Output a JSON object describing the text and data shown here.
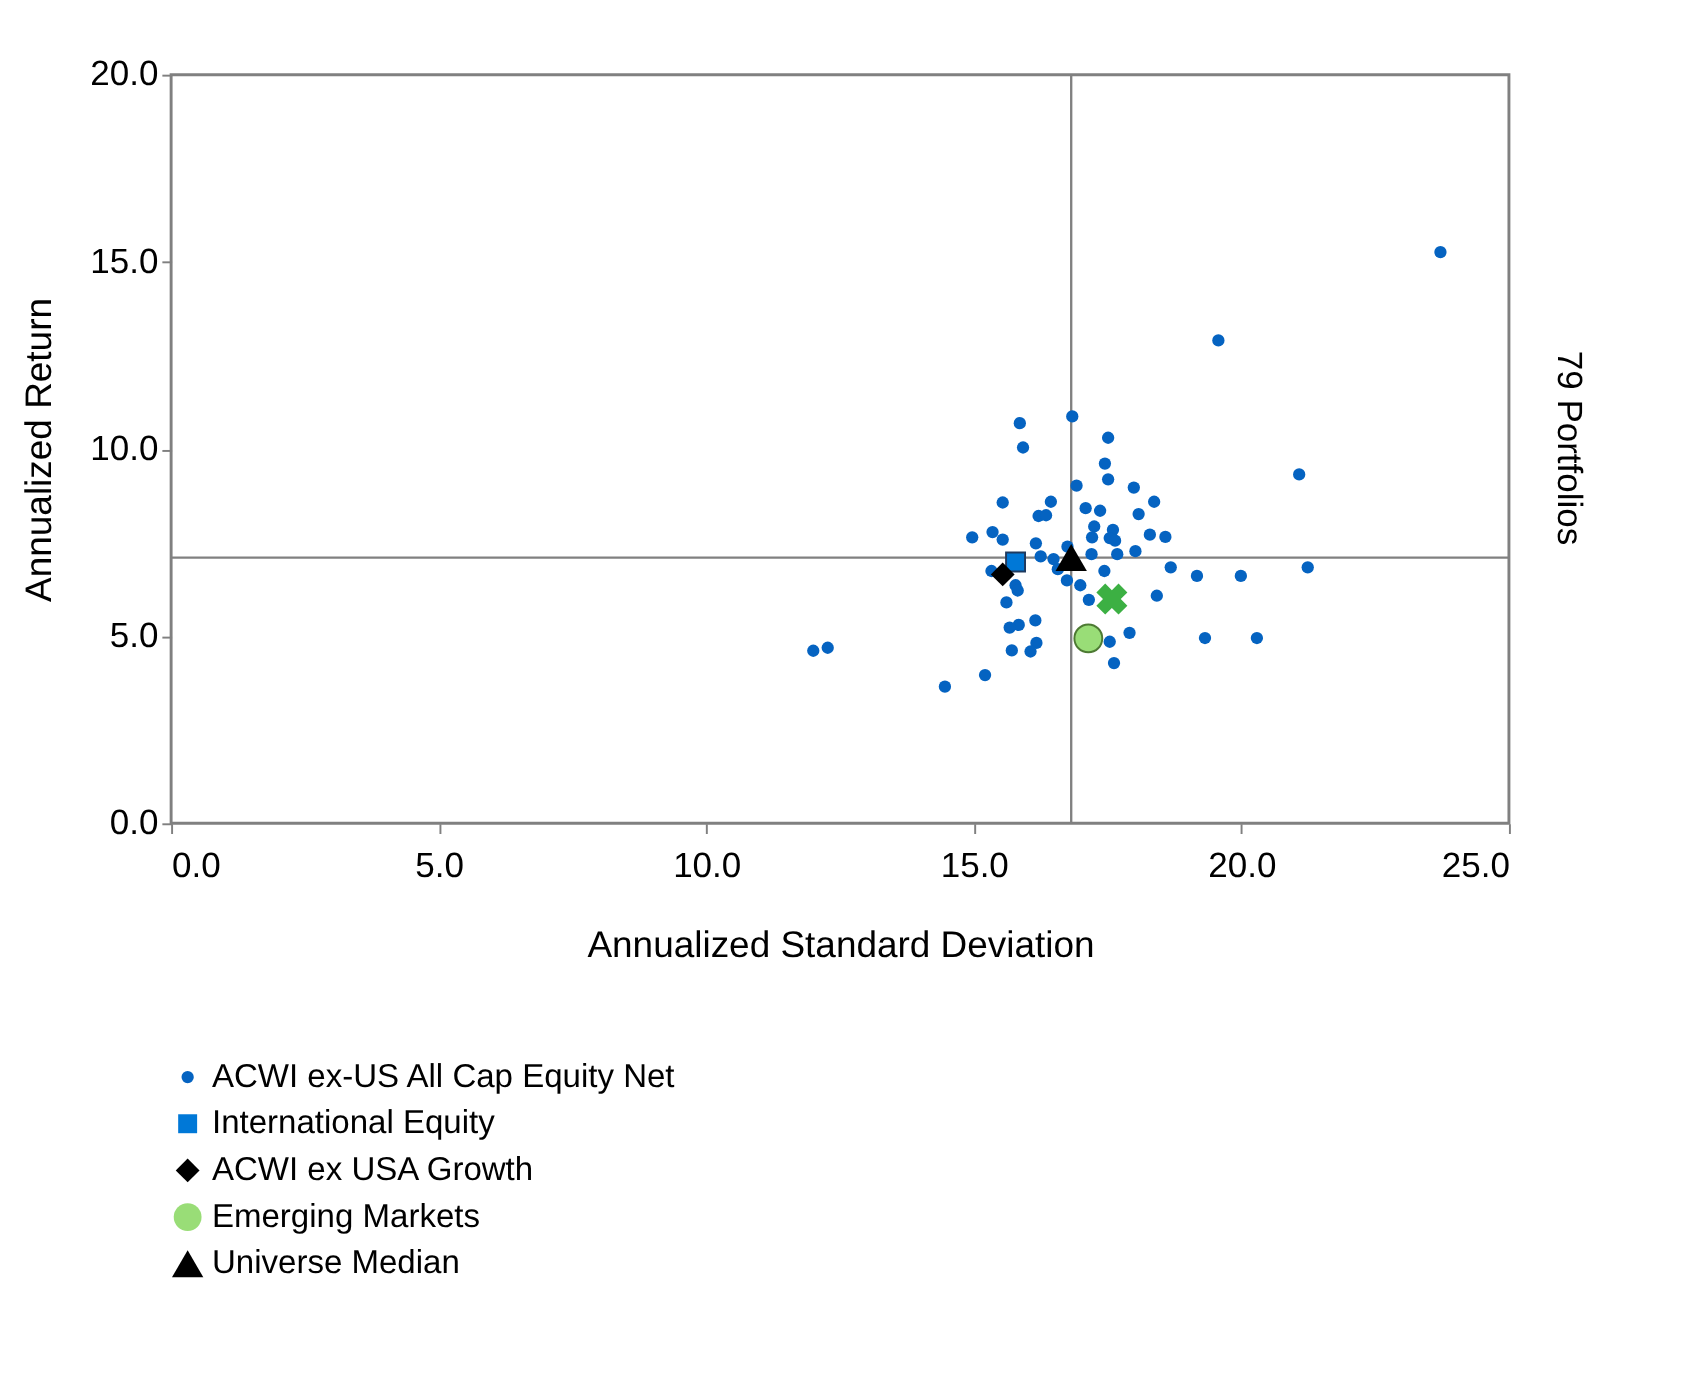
{
  "chart_data": {
    "type": "scatter",
    "xlabel": "Annualized Standard Deviation",
    "ylabel": "Annualized Return",
    "y2label": "79 Portfolios",
    "xlim": [
      0,
      25
    ],
    "ylim": [
      0,
      20
    ],
    "xticks": [
      {
        "value": 0,
        "label": "0.0"
      },
      {
        "value": 5,
        "label": "5.0"
      },
      {
        "value": 10,
        "label": "10.0"
      },
      {
        "value": 15,
        "label": "15.0"
      },
      {
        "value": 20,
        "label": "20.0"
      },
      {
        "value": 25,
        "label": "25.0"
      }
    ],
    "yticks": [
      {
        "value": 0,
        "label": "0.0"
      },
      {
        "value": 5,
        "label": "5.0"
      },
      {
        "value": 10,
        "label": "10.0"
      },
      {
        "value": 15,
        "label": "15.0"
      },
      {
        "value": 20,
        "label": "20.0"
      }
    ],
    "grid": false,
    "legend": "bottom",
    "ref_lines": [
      {
        "axis": "x",
        "value": 16.82,
        "color": "#808080"
      },
      {
        "axis": "y",
        "value": 7.1,
        "color": "#808080"
      }
    ],
    "series": [
      {
        "name": "ACWI ex-US All Cap Equity Net",
        "color": "#0563c1",
        "marker": "circle",
        "x": [
          23.72,
          19.57,
          15.86,
          16.84,
          15.92,
          17.51,
          17.45,
          17.51,
          21.08,
          16.92,
          17.99,
          15.54,
          16.44,
          18.37,
          17.09,
          17.36,
          18.08,
          16.21,
          16.35,
          17.25,
          17.6,
          15.35,
          14.97,
          18.29,
          18.58,
          17.21,
          17.54,
          17.64,
          15.54,
          16.16,
          18.02,
          17.68,
          17.2,
          16.25,
          16.49,
          16.75,
          18.68,
          19.17,
          19.99,
          21.24,
          16.57,
          17.44,
          15.33,
          15.78,
          15.82,
          16.74,
          16.99,
          17.15,
          18.42,
          15.61,
          16.15,
          15.84,
          15.67,
          17.91,
          17.54,
          19.32,
          20.29,
          16.17,
          15.71,
          16.06,
          12.0,
          12.27,
          17.62,
          15.21,
          14.46
        ],
        "values": [
          15.26,
          12.9,
          10.69,
          10.87,
          10.04,
          10.3,
          9.61,
          9.19,
          9.32,
          9.02,
          8.97,
          8.57,
          8.59,
          8.59,
          8.42,
          8.35,
          8.26,
          8.21,
          8.23,
          7.93,
          7.84,
          7.78,
          7.64,
          7.71,
          7.65,
          7.64,
          7.62,
          7.55,
          7.58,
          7.48,
          7.27,
          7.19,
          7.19,
          7.13,
          7.06,
          7.39,
          6.84,
          6.61,
          6.61,
          6.84,
          6.79,
          6.74,
          6.74,
          6.36,
          6.22,
          6.49,
          6.36,
          5.97,
          6.08,
          5.9,
          5.42,
          5.3,
          5.23,
          5.09,
          4.85,
          4.95,
          4.95,
          4.82,
          4.62,
          4.59,
          4.61,
          4.69,
          4.28,
          3.96,
          3.65
        ]
      },
      {
        "name": "International Equity",
        "color": "#0078d7",
        "marker": "square",
        "x": [
          15.78
        ],
        "values": [
          6.98
        ]
      },
      {
        "color": "#3cb043",
        "marker": "cross",
        "x": [
          17.58
        ],
        "values": [
          5.99
        ]
      },
      {
        "name": "ACWI ex USA Growth",
        "color": "#000000",
        "marker": "diamond",
        "x": [
          15.54
        ],
        "values": [
          6.65
        ]
      },
      {
        "name": "Emerging Markets",
        "color": "#99dd77",
        "marker": "circle",
        "x": [
          17.14
        ],
        "values": [
          4.94
        ]
      },
      {
        "name": "Universe Median",
        "color": "#000000",
        "marker": "triangle",
        "x": [
          16.82
        ],
        "values": [
          7.1
        ]
      }
    ]
  }
}
